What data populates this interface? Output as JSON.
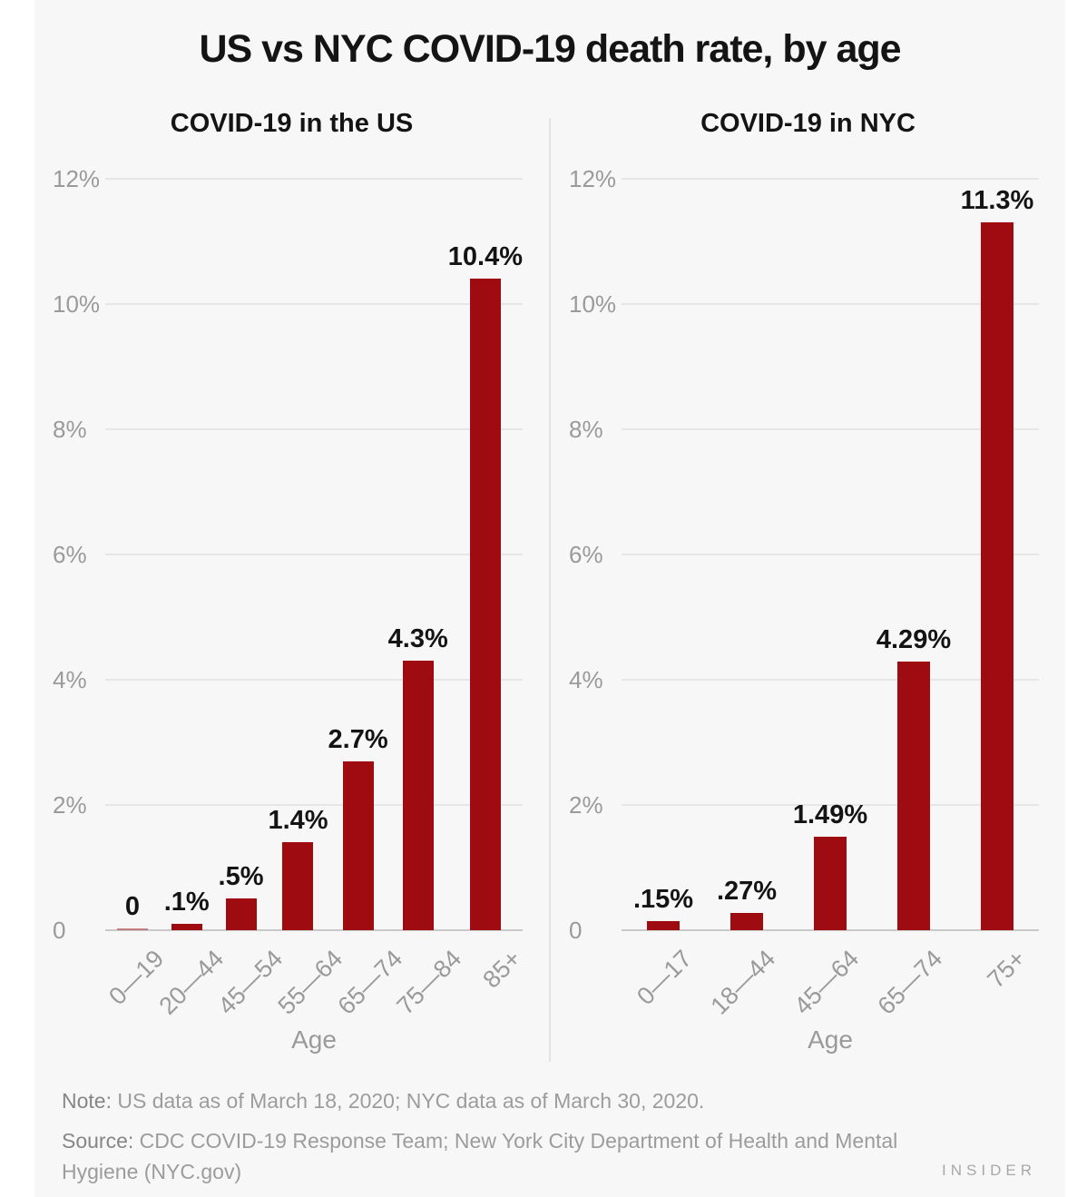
{
  "page": {
    "title": "US vs NYC COVID-19 death rate, by age",
    "brand": "INSIDER",
    "note_label": "Note:",
    "note_text": "US data as of March 18, 2020; NYC data as of March 30, 2020.",
    "source_label": "Source:",
    "source_text": "CDC COVID-19 Response Team; New York City Department of Health and Mental Hygiene (NYC.gov)"
  },
  "colors": {
    "bar": "#9e0b10",
    "canvas_background": "#f7f7f7",
    "page_margin": "#ffffff",
    "gridline": "#e6e6e6",
    "axis_line": "#c9c9c9",
    "muted_text": "#9a9a9a",
    "dark_text": "#141414"
  },
  "chart_data": [
    {
      "type": "bar",
      "title": "COVID-19 in the US",
      "categories": [
        "0—19",
        "20—44",
        "45—54",
        "55—64",
        "65—74",
        "75—84",
        "85+"
      ],
      "values": [
        0,
        0.1,
        0.5,
        1.4,
        2.7,
        4.3,
        10.4
      ],
      "value_labels": [
        "0",
        ".1%",
        ".5%",
        "1.4%",
        "2.7%",
        "4.3%",
        "10.4%"
      ],
      "xlabel": "Age",
      "ylabel": "",
      "ylim": [
        0,
        12
      ],
      "ytick_values": [
        0,
        2,
        4,
        6,
        8,
        10,
        12
      ],
      "ytick_labels": [
        "0",
        "2%",
        "4%",
        "6%",
        "8%",
        "10%",
        "12%"
      ],
      "grid": true,
      "legend": "none",
      "bar_color": "#9e0b10"
    },
    {
      "type": "bar",
      "title": "COVID-19 in NYC",
      "categories": [
        "0—17",
        "18—44",
        "45—64",
        "65—74",
        "75+"
      ],
      "values": [
        0.15,
        0.27,
        1.49,
        4.29,
        11.3
      ],
      "value_labels": [
        ".15%",
        ".27%",
        "1.49%",
        "4.29%",
        "11.3%"
      ],
      "xlabel": "Age",
      "ylabel": "",
      "ylim": [
        0,
        12
      ],
      "ytick_values": [
        0,
        2,
        4,
        6,
        8,
        10,
        12
      ],
      "ytick_labels": [
        "0",
        "2%",
        "4%",
        "6%",
        "8%",
        "10%",
        "12%"
      ],
      "grid": true,
      "legend": "none",
      "bar_color": "#9e0b10"
    }
  ]
}
